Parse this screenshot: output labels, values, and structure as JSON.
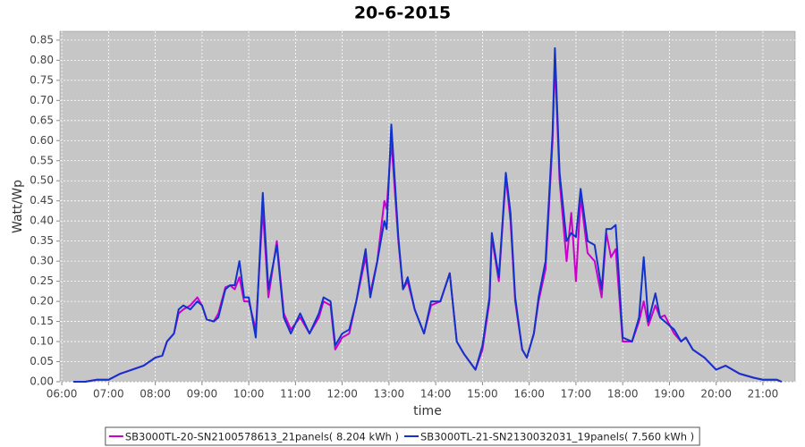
{
  "chart_data": {
    "type": "line",
    "title": "20-6-2015",
    "x_label": "time",
    "y_label": "Watt/Wp",
    "x": [
      6.25,
      6.5,
      6.75,
      7,
      7.25,
      7.5,
      7.75,
      8,
      8.15,
      8.25,
      8.4,
      8.5,
      8.6,
      8.75,
      8.9,
      9,
      9.1,
      9.25,
      9.35,
      9.5,
      9.6,
      9.7,
      9.8,
      9.9,
      10,
      10.15,
      10.3,
      10.42,
      10.6,
      10.75,
      10.9,
      11.1,
      11.3,
      11.5,
      11.6,
      11.75,
      11.85,
      12,
      12.15,
      12.3,
      12.5,
      12.6,
      12.75,
      12.9,
      12.95,
      13.05,
      13.2,
      13.3,
      13.4,
      13.55,
      13.75,
      13.9,
      14.1,
      14.3,
      14.45,
      14.6,
      14.85,
      15,
      15.15,
      15.2,
      15.35,
      15.5,
      15.6,
      15.7,
      15.85,
      15.95,
      16.1,
      16.2,
      16.35,
      16.5,
      16.55,
      16.65,
      16.8,
      16.9,
      17,
      17.1,
      17.25,
      17.4,
      17.55,
      17.65,
      17.75,
      17.85,
      18,
      18.2,
      18.35,
      18.45,
      18.55,
      18.7,
      18.8,
      18.9,
      19.1,
      19.25,
      19.35,
      19.5,
      19.75,
      20,
      20.2,
      20.5,
      20.8,
      21,
      21.3,
      21.4
    ],
    "series": [
      {
        "name": "SB3000TL-20-SN2100578613_21panels( 8.204 kWh )",
        "color": "#cc00cc",
        "values": [
          0,
          0,
          0.005,
          0.005,
          0.02,
          0.03,
          0.04,
          0.06,
          0.065,
          0.1,
          0.12,
          0.17,
          0.18,
          0.19,
          0.21,
          0.19,
          0.155,
          0.15,
          0.17,
          0.235,
          0.24,
          0.23,
          0.26,
          0.2,
          0.2,
          0.13,
          0.43,
          0.21,
          0.35,
          0.17,
          0.13,
          0.16,
          0.12,
          0.16,
          0.2,
          0.19,
          0.08,
          0.11,
          0.12,
          0.2,
          0.31,
          0.22,
          0.3,
          0.45,
          0.43,
          0.6,
          0.35,
          0.23,
          0.25,
          0.18,
          0.12,
          0.19,
          0.2,
          0.27,
          0.1,
          0.07,
          0.03,
          0.08,
          0.2,
          0.36,
          0.25,
          0.51,
          0.4,
          0.2,
          0.08,
          0.06,
          0.12,
          0.2,
          0.28,
          0.6,
          0.8,
          0.5,
          0.3,
          0.42,
          0.25,
          0.46,
          0.32,
          0.3,
          0.21,
          0.37,
          0.31,
          0.33,
          0.1,
          0.1,
          0.15,
          0.2,
          0.14,
          0.19,
          0.16,
          0.165,
          0.12,
          0.1,
          0.11,
          0.08,
          0.06,
          0.03,
          0.04,
          0.02,
          0.01,
          0.005,
          0.005,
          0
        ]
      },
      {
        "name": "SB3000TL-21-SN2130032031_19panels( 7.560 kWh )",
        "color": "#1133cc",
        "values": [
          0,
          0,
          0.005,
          0.005,
          0.02,
          0.03,
          0.04,
          0.06,
          0.065,
          0.1,
          0.12,
          0.18,
          0.19,
          0.18,
          0.2,
          0.19,
          0.155,
          0.15,
          0.16,
          0.23,
          0.24,
          0.24,
          0.3,
          0.21,
          0.21,
          0.11,
          0.47,
          0.23,
          0.34,
          0.16,
          0.12,
          0.17,
          0.12,
          0.17,
          0.21,
          0.2,
          0.09,
          0.12,
          0.13,
          0.2,
          0.33,
          0.21,
          0.3,
          0.4,
          0.38,
          0.64,
          0.36,
          0.23,
          0.26,
          0.18,
          0.12,
          0.2,
          0.2,
          0.27,
          0.1,
          0.07,
          0.03,
          0.09,
          0.21,
          0.37,
          0.26,
          0.52,
          0.42,
          0.21,
          0.08,
          0.06,
          0.12,
          0.21,
          0.3,
          0.62,
          0.83,
          0.52,
          0.35,
          0.37,
          0.36,
          0.48,
          0.35,
          0.34,
          0.23,
          0.38,
          0.38,
          0.39,
          0.11,
          0.1,
          0.16,
          0.31,
          0.15,
          0.22,
          0.16,
          0.15,
          0.13,
          0.1,
          0.11,
          0.08,
          0.06,
          0.03,
          0.04,
          0.02,
          0.01,
          0.005,
          0.005,
          0
        ]
      }
    ],
    "xlim": [
      5.96,
      21.69
    ],
    "ylim": [
      0,
      0.872
    ],
    "xticks": [
      {
        "value": 6,
        "label": "06:00"
      },
      {
        "value": 7,
        "label": "07:00"
      },
      {
        "value": 8,
        "label": "08:00"
      },
      {
        "value": 9,
        "label": "09:00"
      },
      {
        "value": 10,
        "label": "10:00"
      },
      {
        "value": 11,
        "label": "11:00"
      },
      {
        "value": 12,
        "label": "12:00"
      },
      {
        "value": 13,
        "label": "13:00"
      },
      {
        "value": 14,
        "label": "14:00"
      },
      {
        "value": 15,
        "label": "15:00"
      },
      {
        "value": 16,
        "label": "16:00"
      },
      {
        "value": 17,
        "label": "17:00"
      },
      {
        "value": 18,
        "label": "18:00"
      },
      {
        "value": 19,
        "label": "19:00"
      },
      {
        "value": 20,
        "label": "20:00"
      },
      {
        "value": 21,
        "label": "21:00"
      }
    ],
    "yticks": [
      {
        "value": 0,
        "label": "0.00"
      },
      0.05,
      {
        "value": 0.1,
        "label": "0.10"
      },
      0.15,
      {
        "value": 0.2,
        "label": "0.20"
      },
      0.25,
      {
        "value": 0.3,
        "label": "0.30"
      },
      0.35,
      {
        "value": 0.4,
        "label": "0.40"
      },
      0.45,
      {
        "value": 0.5,
        "label": "0.50"
      },
      0.55,
      {
        "value": 0.6,
        "label": "0.60"
      },
      0.65,
      {
        "value": 0.7,
        "label": "0.70"
      },
      0.75,
      {
        "value": 0.8,
        "label": "0.80"
      },
      0.85
    ],
    "grid": true,
    "legend": "bottom"
  }
}
